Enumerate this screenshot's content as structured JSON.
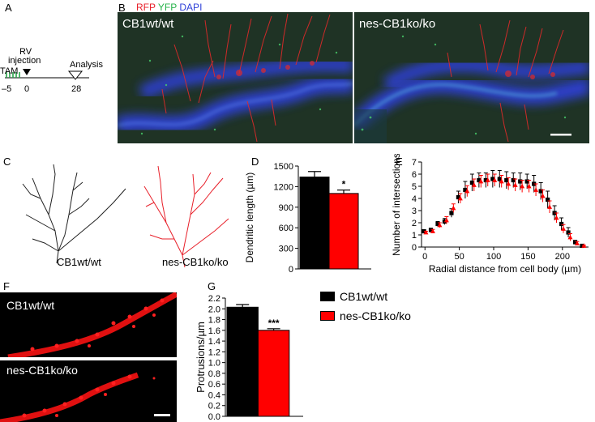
{
  "panels": {
    "A": {
      "letter": "A",
      "timeline": {
        "labels": {
          "rv": "RV",
          "injection": "injection",
          "tam": "TAM",
          "analysis": "Analysis"
        },
        "ticks": [
          "–5",
          "0",
          "28"
        ]
      }
    },
    "B": {
      "letter": "B",
      "stains": [
        {
          "label": "RFP",
          "color": "#e8202a"
        },
        {
          "label": "YFP",
          "color": "#26b34a"
        },
        {
          "label": "DAPI",
          "color": "#2d3fd8"
        }
      ],
      "images": [
        "CB1wt/wt",
        "nes-CB1ko/ko"
      ]
    },
    "C": {
      "letter": "C",
      "tracings": [
        {
          "label": "CB1wt/wt",
          "color": "#222222"
        },
        {
          "label": "nes-CB1ko/ko",
          "color": "#e8202a"
        }
      ]
    },
    "D": {
      "letter": "D"
    },
    "E": {
      "letter": "E"
    },
    "F": {
      "letter": "F",
      "images": [
        "CB1wt/wt",
        "nes-CB1ko/ko"
      ]
    },
    "G": {
      "letter": "G"
    }
  },
  "legend": [
    {
      "label": "CB1wt/wt",
      "color": "#000000"
    },
    {
      "label": "nes-CB1ko/ko",
      "color": "#ff0000"
    }
  ],
  "chart_data": [
    {
      "panel": "D",
      "type": "bar",
      "ylabel": "Dendritic length (µm)",
      "ylim": [
        0,
        1500
      ],
      "yticks": [
        "0",
        "300",
        "600",
        "900",
        "1200",
        "1500"
      ],
      "series": [
        {
          "name": "CB1wt/wt",
          "value": 1340,
          "error": 80,
          "color": "#000000"
        },
        {
          "name": "nes-CB1ko/ko",
          "value": 1100,
          "error": 50,
          "color": "#ff0000"
        }
      ],
      "annotations": [
        {
          "text": "*",
          "series": 1
        }
      ]
    },
    {
      "panel": "E",
      "type": "scatter",
      "xlabel": "Radial distance from cell body (µm)",
      "ylabel": "Number of intersections",
      "xlim": [
        -5,
        238
      ],
      "ylim": [
        0,
        7
      ],
      "xticks": [
        "0",
        "50",
        "100",
        "150",
        "200"
      ],
      "yticks": [
        "0",
        "1",
        "2",
        "3",
        "4",
        "5",
        "6",
        "7"
      ],
      "x": [
        0,
        10,
        20,
        30,
        40,
        50,
        60,
        70,
        80,
        90,
        100,
        110,
        120,
        130,
        140,
        150,
        160,
        170,
        180,
        190,
        200,
        210,
        220,
        230
      ],
      "series": [
        {
          "name": "CB1wt/wt",
          "color": "#000000",
          "values": [
            1.3,
            1.4,
            1.9,
            2.1,
            2.8,
            4.1,
            4.7,
            5.3,
            5.5,
            5.5,
            5.6,
            5.6,
            5.5,
            5.5,
            5.4,
            5.4,
            5.2,
            4.6,
            3.9,
            2.8,
            1.9,
            1.2,
            0.4,
            0.1
          ],
          "errors": [
            0.1,
            0.15,
            0.2,
            0.25,
            0.35,
            0.5,
            0.7,
            0.7,
            0.6,
            0.6,
            0.7,
            0.7,
            0.7,
            0.6,
            0.7,
            0.6,
            0.7,
            0.7,
            0.7,
            0.6,
            0.5,
            0.4,
            0.15,
            0.05
          ]
        },
        {
          "name": "nes-CB1ko/ko",
          "color": "#ff0000",
          "values": [
            1.2,
            1.3,
            1.8,
            2.2,
            3.2,
            4.0,
            4.6,
            5.1,
            5.4,
            5.5,
            5.5,
            5.4,
            5.2,
            5.1,
            5.0,
            5.0,
            4.7,
            4.2,
            3.3,
            2.4,
            1.5,
            0.8,
            0.3,
            0.1
          ],
          "errors": [
            0.1,
            0.15,
            0.2,
            0.3,
            0.35,
            0.4,
            0.45,
            0.5,
            0.5,
            0.5,
            0.5,
            0.5,
            0.5,
            0.5,
            0.5,
            0.5,
            0.5,
            0.5,
            0.5,
            0.4,
            0.35,
            0.3,
            0.15,
            0.05
          ]
        }
      ]
    },
    {
      "panel": "G",
      "type": "bar",
      "ylabel": "Protrusions/µm",
      "ylim": [
        0,
        2.2
      ],
      "yticks": [
        "0.0",
        "0.2",
        "0.4",
        "0.6",
        "0.8",
        "1.0",
        "1.2",
        "1.4",
        "1.6",
        "1.8",
        "2.0",
        "2.2"
      ],
      "series": [
        {
          "name": "CB1wt/wt",
          "value": 2.03,
          "error": 0.05,
          "color": "#000000"
        },
        {
          "name": "nes-CB1ko/ko",
          "value": 1.6,
          "error": 0.03,
          "color": "#ff0000"
        }
      ],
      "annotations": [
        {
          "text": "***",
          "series": 1
        }
      ]
    }
  ]
}
